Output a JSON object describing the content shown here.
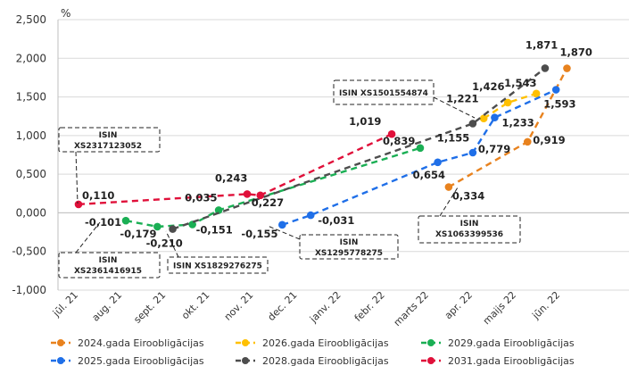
{
  "chart_data": {
    "type": "line",
    "unit_label": "%",
    "ylim": [
      -1.0,
      2.5
    ],
    "yticks": [
      "-1,000",
      "-0,500",
      "0,000",
      "0,500",
      "1,000",
      "1,500",
      "2,000",
      "2,500"
    ],
    "ytick_values": [
      -1.0,
      -0.5,
      0.0,
      0.5,
      1.0,
      1.5,
      2.0,
      2.5
    ],
    "categories": [
      "jūl. 21",
      "aug. 21",
      "sept. 21",
      "okt. 21",
      "nov. 21",
      "dec. 21",
      "janv. 22",
      "febr. 22",
      "marts 22",
      "apr. 22",
      "maijs 22",
      "jūn. 22"
    ],
    "series": [
      {
        "name": "2024.gada Eiroobligācijas",
        "color": "#E8821E",
        "points": [
          {
            "x": 8.45,
            "y": 0.334,
            "label": "0,334"
          },
          {
            "x": 10.25,
            "y": 0.919,
            "label": "0,919"
          },
          {
            "x": 11.15,
            "y": 1.87,
            "label": "1,870"
          }
        ]
      },
      {
        "name": "2026.gada Eiroobligācijas",
        "color": "#FFC000",
        "points": [
          {
            "x": 9.25,
            "y": 1.221,
            "label": "1,221"
          },
          {
            "x": 9.8,
            "y": 1.426,
            "label": "1,426"
          },
          {
            "x": 10.45,
            "y": 1.543,
            "label": "1,543"
          }
        ]
      },
      {
        "name": "2029.gada Eiroobligācijas",
        "color": "#1AAF54",
        "points": [
          {
            "x": 1.08,
            "y": -0.101,
            "label": "-0,101"
          },
          {
            "x": 1.8,
            "y": -0.179,
            "label": "-0,179"
          },
          {
            "x": 2.6,
            "y": -0.151,
            "label": "-0,151"
          },
          {
            "x": 3.2,
            "y": 0.035,
            "label": "0,035"
          },
          {
            "x": 7.8,
            "y": 0.839,
            "label": "0,839"
          }
        ]
      },
      {
        "name": "2025.gada Eiroobligācijas",
        "color": "#1F6FE8",
        "points": [
          {
            "x": 4.65,
            "y": -0.155,
            "label": "-0,155"
          },
          {
            "x": 5.3,
            "y": -0.031,
            "label": "-0,031"
          },
          {
            "x": 8.2,
            "y": 0.654,
            "label": "0,654"
          },
          {
            "x": 9.0,
            "y": 0.779,
            "label": "0,779"
          },
          {
            "x": 9.5,
            "y": 1.233,
            "label": "1,233"
          },
          {
            "x": 10.9,
            "y": 1.593,
            "label": "1,593"
          }
        ]
      },
      {
        "name": "2028.gada Eiroobligācijas",
        "color": "#4D4D4D",
        "points": [
          {
            "x": 2.15,
            "y": -0.21,
            "label": "-0,210"
          },
          {
            "x": 9.0,
            "y": 1.155,
            "label": "1,155"
          },
          {
            "x": 10.65,
            "y": 1.871,
            "label": "1,871"
          }
        ]
      },
      {
        "name": "2031.gada Eiroobligācijas",
        "color": "#E0103A",
        "points": [
          {
            "x": 0.0,
            "y": 0.11,
            "label": "0,110"
          },
          {
            "x": 3.85,
            "y": 0.243,
            "label": "0,243"
          },
          {
            "x": 4.15,
            "y": 0.227,
            "label": "0,227"
          },
          {
            "x": 7.15,
            "y": 1.019,
            "label": "1,019"
          }
        ]
      }
    ],
    "annotations": [
      {
        "text": [
          "ISIN",
          "XS2317123052"
        ]
      },
      {
        "text": [
          "ISIN",
          "XS2361416915"
        ]
      },
      {
        "text": [
          "ISIN XS1829276275"
        ]
      },
      {
        "text": [
          "ISIN",
          "XS1295778275"
        ]
      },
      {
        "text": [
          "ISIN XS1501554874"
        ]
      },
      {
        "text": [
          "ISIN",
          "XS1063399536"
        ]
      }
    ],
    "legend_position": "bottom"
  }
}
